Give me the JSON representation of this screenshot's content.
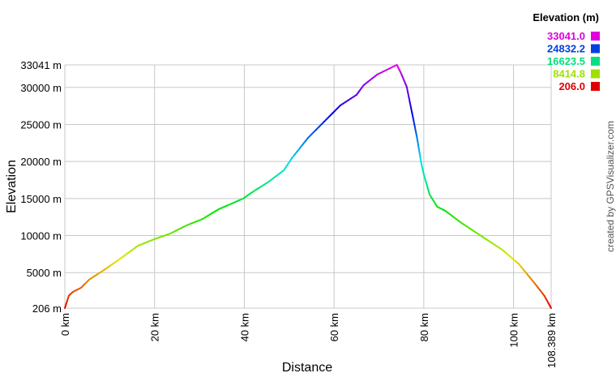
{
  "chart_data": {
    "type": "line",
    "xlabel": "Distance",
    "ylabel": "Elevation",
    "xlim": [
      0,
      108.389
    ],
    "ylim": [
      206,
      33041
    ],
    "grid": true,
    "x_ticks": [
      {
        "value": 0,
        "label": "0 km"
      },
      {
        "value": 20,
        "label": "20 km"
      },
      {
        "value": 40,
        "label": "40 km"
      },
      {
        "value": 60,
        "label": "60 km"
      },
      {
        "value": 80,
        "label": "80 km"
      },
      {
        "value": 100,
        "label": "100 km"
      },
      {
        "value": 108.389,
        "label": "108.389 km"
      }
    ],
    "y_ticks": [
      {
        "value": 206,
        "label": "206 m"
      },
      {
        "value": 5000,
        "label": "5000 m"
      },
      {
        "value": 10000,
        "label": "10000 m"
      },
      {
        "value": 15000,
        "label": "15000 m"
      },
      {
        "value": 20000,
        "label": "20000 m"
      },
      {
        "value": 25000,
        "label": "25000 m"
      },
      {
        "value": 30000,
        "label": "30000 m"
      },
      {
        "value": 33041,
        "label": "33041 m"
      }
    ],
    "x": [
      0,
      0.9,
      1.8,
      3.6,
      5.4,
      9.0,
      12.6,
      16.3,
      19.9,
      23.5,
      27.1,
      30.7,
      34.3,
      39.7,
      41.5,
      45.2,
      48.8,
      50.6,
      54.2,
      57.8,
      61.4,
      65.0,
      66.6,
      69.6,
      74.0,
      74.9,
      76.2,
      77.6,
      78.5,
      79.4,
      80.0,
      81.3,
      83.0,
      84.8,
      88.4,
      93.9,
      97.5,
      101.1,
      104.8,
      106.9,
      108.389
    ],
    "y": [
      206,
      1900,
      2400,
      2950,
      4040,
      5460,
      6990,
      8630,
      9500,
      10270,
      11370,
      12240,
      13560,
      14980,
      15750,
      17170,
      18810,
      20450,
      23190,
      25380,
      27570,
      28990,
      30300,
      31730,
      33041,
      31950,
      30080,
      25920,
      23190,
      19900,
      18260,
      15530,
      13890,
      13340,
      11700,
      9510,
      8080,
      6220,
      3490,
      1850,
      206
    ],
    "legend": {
      "title": "Elevation (m)",
      "placement": "top-right",
      "entries": [
        {
          "label": "33041.0",
          "color": "#e000e0"
        },
        {
          "label": "24832.2",
          "color": "#0040e0"
        },
        {
          "label": "16623.5",
          "color": "#00e080"
        },
        {
          "label": "8414.8",
          "color": "#a0e000"
        },
        {
          "label": "206.0",
          "color": "#e00000"
        }
      ]
    }
  },
  "credit": "created by GPSVisualizer.com"
}
